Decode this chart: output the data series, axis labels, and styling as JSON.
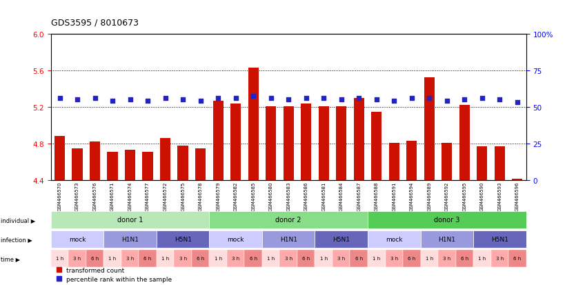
{
  "title": "GDS3595 / 8010673",
  "samples": [
    "GSM466570",
    "GSM466573",
    "GSM466576",
    "GSM466571",
    "GSM466574",
    "GSM466577",
    "GSM466572",
    "GSM466575",
    "GSM466578",
    "GSM466579",
    "GSM466582",
    "GSM466585",
    "GSM466580",
    "GSM466583",
    "GSM466586",
    "GSM466581",
    "GSM466584",
    "GSM466587",
    "GSM466588",
    "GSM466591",
    "GSM466594",
    "GSM466589",
    "GSM466592",
    "GSM466595",
    "GSM466590",
    "GSM466593",
    "GSM466596"
  ],
  "bar_values": [
    4.88,
    4.75,
    4.82,
    4.71,
    4.73,
    4.71,
    4.86,
    4.78,
    4.75,
    5.27,
    5.24,
    5.63,
    5.21,
    5.21,
    5.24,
    5.21,
    5.21,
    5.3,
    5.15,
    4.81,
    4.83,
    5.52,
    4.81,
    5.22,
    4.77,
    4.77,
    4.42
  ],
  "percentile_values": [
    5.3,
    5.28,
    5.3,
    5.27,
    5.28,
    5.27,
    5.3,
    5.28,
    5.27,
    5.3,
    5.3,
    5.32,
    5.3,
    5.28,
    5.3,
    5.3,
    5.28,
    5.3,
    5.28,
    5.27,
    5.3,
    5.3,
    5.27,
    5.28,
    5.3,
    5.28,
    5.25
  ],
  "ylim_left": [
    4.4,
    6.0
  ],
  "yticks_left": [
    4.4,
    4.8,
    5.2,
    5.6,
    6.0
  ],
  "ylim_right": [
    0,
    100
  ],
  "yticks_right": [
    0,
    25,
    50,
    75,
    100
  ],
  "ytick_labels_right": [
    "0",
    "25",
    "50",
    "75",
    "100%"
  ],
  "bar_color": "#cc1100",
  "dot_color": "#2222cc",
  "individual_groups": [
    {
      "label": "donor 1",
      "start": 0,
      "end": 8,
      "color": "#b8e8b8"
    },
    {
      "label": "donor 2",
      "start": 9,
      "end": 17,
      "color": "#88dd88"
    },
    {
      "label": "donor 3",
      "start": 18,
      "end": 26,
      "color": "#55cc55"
    }
  ],
  "infection_groups": [
    {
      "label": "mock",
      "start": 0,
      "end": 2,
      "color": "#ccccff"
    },
    {
      "label": "H1N1",
      "start": 3,
      "end": 5,
      "color": "#9999dd"
    },
    {
      "label": "H5N1",
      "start": 6,
      "end": 8,
      "color": "#6666bb"
    },
    {
      "label": "mock",
      "start": 9,
      "end": 11,
      "color": "#ccccff"
    },
    {
      "label": "H1N1",
      "start": 12,
      "end": 14,
      "color": "#9999dd"
    },
    {
      "label": "H5N1",
      "start": 15,
      "end": 17,
      "color": "#6666bb"
    },
    {
      "label": "mock",
      "start": 18,
      "end": 20,
      "color": "#ccccff"
    },
    {
      "label": "H1N1",
      "start": 21,
      "end": 23,
      "color": "#9999dd"
    },
    {
      "label": "H5N1",
      "start": 24,
      "end": 26,
      "color": "#6666bb"
    }
  ],
  "time_colors": {
    "1h": "#ffdddd",
    "3h": "#ffaaaa",
    "6h": "#ee8888"
  },
  "time_labels": [
    "1 h",
    "3 h",
    "6 h",
    "1 h",
    "3 h",
    "6 h",
    "1 h",
    "3 h",
    "6 h",
    "1 h",
    "3 h",
    "6 h",
    "1 h",
    "3 h",
    "6 h",
    "1 h",
    "3 h",
    "6 h",
    "1 h",
    "3 h",
    "6 h",
    "1 h",
    "3 h",
    "6 h",
    "1 h",
    "3 h",
    "6 h"
  ],
  "legend_bar_label": "transformed count",
  "legend_dot_label": "percentile rank within the sample",
  "label_individual": "individual",
  "label_infection": "infection",
  "label_time": "time",
  "bg_sample_labels": "#dddddd"
}
